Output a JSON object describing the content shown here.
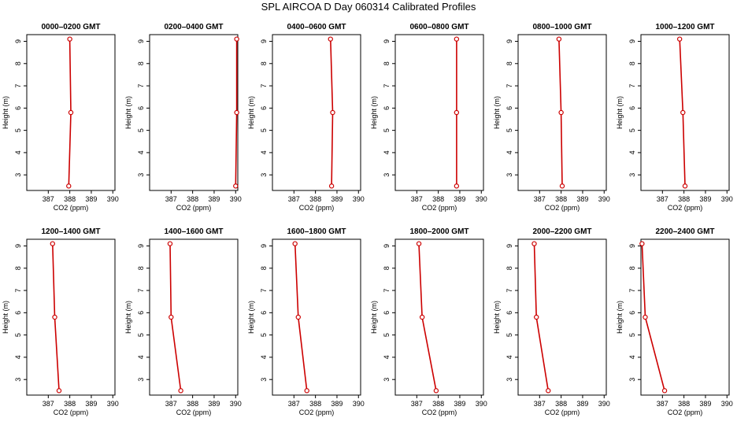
{
  "title": "SPL AIRCOA D  Day 060314  Calibrated Profiles",
  "colors": {
    "line": "#cc0000",
    "axis": "#000000"
  },
  "chart_data": [
    {
      "type": "line",
      "title": "0000–0200 GMT",
      "xlabel": "CO2 (ppm)",
      "ylabel": "Height (m)",
      "xlim": [
        386,
        390.1
      ],
      "ylim": [
        2.3,
        9.3
      ],
      "xticks": [
        387,
        388,
        389,
        390
      ],
      "yticks": [
        3,
        4,
        5,
        6,
        7,
        8,
        9
      ],
      "x": [
        387.95,
        388.05,
        388.0
      ],
      "y": [
        2.5,
        5.8,
        9.1
      ]
    },
    {
      "type": "line",
      "title": "0200–0400 GMT",
      "xlabel": "CO2 (ppm)",
      "ylabel": "Height (m)",
      "xlim": [
        386,
        390.1
      ],
      "ylim": [
        2.3,
        9.3
      ],
      "xticks": [
        387,
        388,
        389,
        390
      ],
      "yticks": [
        3,
        4,
        5,
        6,
        7,
        8,
        9
      ],
      "x": [
        390.0,
        390.05,
        390.05
      ],
      "y": [
        2.5,
        5.8,
        9.1
      ]
    },
    {
      "type": "line",
      "title": "0400–0600 GMT",
      "xlabel": "CO2 (ppm)",
      "ylabel": "Height (m)",
      "xlim": [
        386,
        390.1
      ],
      "ylim": [
        2.3,
        9.3
      ],
      "xticks": [
        387,
        388,
        389,
        390
      ],
      "yticks": [
        3,
        4,
        5,
        6,
        7,
        8,
        9
      ],
      "x": [
        388.75,
        388.8,
        388.7
      ],
      "y": [
        2.5,
        5.8,
        9.1
      ]
    },
    {
      "type": "line",
      "title": "0600–0800 GMT",
      "xlabel": "CO2 (ppm)",
      "ylabel": "Height (m)",
      "xlim": [
        386,
        390.1
      ],
      "ylim": [
        2.3,
        9.3
      ],
      "xticks": [
        387,
        388,
        389,
        390
      ],
      "yticks": [
        3,
        4,
        5,
        6,
        7,
        8,
        9
      ],
      "x": [
        388.85,
        388.85,
        388.85
      ],
      "y": [
        2.5,
        5.8,
        9.1
      ]
    },
    {
      "type": "line",
      "title": "0800–1000 GMT",
      "xlabel": "CO2 (ppm)",
      "ylabel": "Height (m)",
      "xlim": [
        386,
        390.1
      ],
      "ylim": [
        2.3,
        9.3
      ],
      "xticks": [
        387,
        388,
        389,
        390
      ],
      "yticks": [
        3,
        4,
        5,
        6,
        7,
        8,
        9
      ],
      "x": [
        388.05,
        388.0,
        387.9
      ],
      "y": [
        2.5,
        5.8,
        9.1
      ]
    },
    {
      "type": "line",
      "title": "1000–1200 GMT",
      "xlabel": "CO2 (ppm)",
      "ylabel": "Height (m)",
      "xlim": [
        386,
        390.1
      ],
      "ylim": [
        2.3,
        9.3
      ],
      "xticks": [
        387,
        388,
        389,
        390
      ],
      "yticks": [
        3,
        4,
        5,
        6,
        7,
        8,
        9
      ],
      "x": [
        388.05,
        387.95,
        387.8
      ],
      "y": [
        2.5,
        5.8,
        9.1
      ]
    },
    {
      "type": "line",
      "title": "1200–1400 GMT",
      "xlabel": "CO2 (ppm)",
      "ylabel": "Height (m)",
      "xlim": [
        386,
        390.1
      ],
      "ylim": [
        2.3,
        9.3
      ],
      "xticks": [
        387,
        388,
        389,
        390
      ],
      "yticks": [
        3,
        4,
        5,
        6,
        7,
        8,
        9
      ],
      "x": [
        387.5,
        387.3,
        387.2
      ],
      "y": [
        2.5,
        5.8,
        9.1
      ]
    },
    {
      "type": "line",
      "title": "1400–1600 GMT",
      "xlabel": "CO2 (ppm)",
      "ylabel": "Height (m)",
      "xlim": [
        386,
        390.1
      ],
      "ylim": [
        2.3,
        9.3
      ],
      "xticks": [
        387,
        388,
        389,
        390
      ],
      "yticks": [
        3,
        4,
        5,
        6,
        7,
        8,
        9
      ],
      "x": [
        387.45,
        387.0,
        386.95
      ],
      "y": [
        2.5,
        5.8,
        9.1
      ]
    },
    {
      "type": "line",
      "title": "1600–1800 GMT",
      "xlabel": "CO2 (ppm)",
      "ylabel": "Height (m)",
      "xlim": [
        386,
        390.1
      ],
      "ylim": [
        2.3,
        9.3
      ],
      "xticks": [
        387,
        388,
        389,
        390
      ],
      "yticks": [
        3,
        4,
        5,
        6,
        7,
        8,
        9
      ],
      "x": [
        387.6,
        387.2,
        387.05
      ],
      "y": [
        2.5,
        5.8,
        9.1
      ]
    },
    {
      "type": "line",
      "title": "1800–2000 GMT",
      "xlabel": "CO2 (ppm)",
      "ylabel": "Height (m)",
      "xlim": [
        386,
        390.1
      ],
      "ylim": [
        2.3,
        9.3
      ],
      "xticks": [
        387,
        388,
        389,
        390
      ],
      "yticks": [
        3,
        4,
        5,
        6,
        7,
        8,
        9
      ],
      "x": [
        387.9,
        387.25,
        387.1
      ],
      "y": [
        2.5,
        5.8,
        9.1
      ]
    },
    {
      "type": "line",
      "title": "2000–2200 GMT",
      "xlabel": "CO2 (ppm)",
      "ylabel": "Height (m)",
      "xlim": [
        386,
        390.1
      ],
      "ylim": [
        2.3,
        9.3
      ],
      "xticks": [
        387,
        388,
        389,
        390
      ],
      "yticks": [
        3,
        4,
        5,
        6,
        7,
        8,
        9
      ],
      "x": [
        387.4,
        386.85,
        386.75
      ],
      "y": [
        2.5,
        5.8,
        9.1
      ]
    },
    {
      "type": "line",
      "title": "2200–2400 GMT",
      "xlabel": "CO2 (ppm)",
      "ylabel": "Height (m)",
      "xlim": [
        386,
        390.1
      ],
      "ylim": [
        2.3,
        9.3
      ],
      "xticks": [
        387,
        388,
        389,
        390
      ],
      "yticks": [
        3,
        4,
        5,
        6,
        7,
        8,
        9
      ],
      "x": [
        387.1,
        386.2,
        386.05
      ],
      "y": [
        2.5,
        5.8,
        9.1
      ]
    }
  ]
}
